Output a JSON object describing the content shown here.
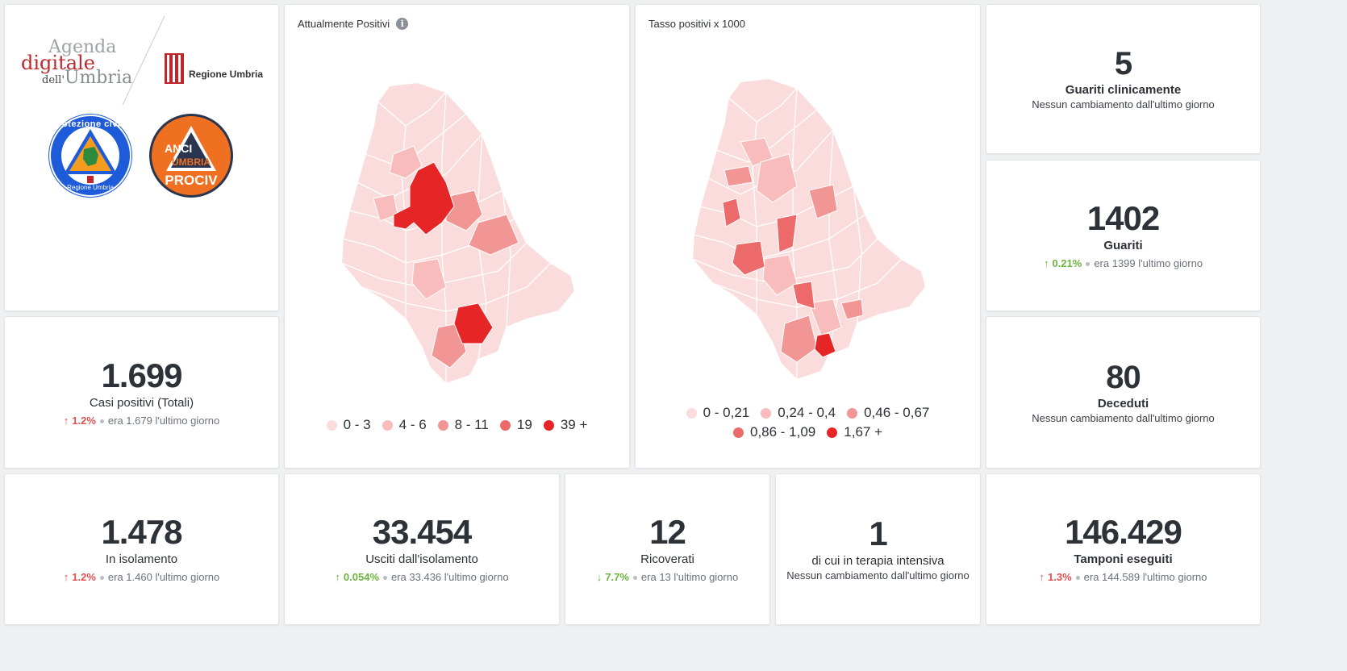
{
  "logos": {
    "agenda_line1": "Agenda",
    "agenda_line2": "digitale",
    "agenda_line3_prefix": "dell'",
    "agenda_line3": "Umbria",
    "regione": "Regione Umbria",
    "protezione_text": "Protezione civile",
    "protezione_sub": "Regione Umbria",
    "anci_line1": "ANCI",
    "anci_line2": "UMBRIA",
    "anci_line3": "PROCIV"
  },
  "map1": {
    "title": "Attualmente Positivi",
    "legend": [
      {
        "label": "0 - 3",
        "color": "#fbdcdc"
      },
      {
        "label": "4 - 6",
        "color": "#f8bcbc"
      },
      {
        "label": "8 - 11",
        "color": "#f29595"
      },
      {
        "label": "19",
        "color": "#ec6a6a"
      },
      {
        "label": "39 +",
        "color": "#e62626"
      }
    ]
  },
  "map2": {
    "title": "Tasso positivi x 1000",
    "legend": [
      {
        "label": "0 - 0,21",
        "color": "#fbdcdc"
      },
      {
        "label": "0,24 - 0,4",
        "color": "#f8bcbc"
      },
      {
        "label": "0,46 - 0,67",
        "color": "#f29595"
      },
      {
        "label": "0,86 - 1,09",
        "color": "#ec6a6a"
      },
      {
        "label": "1,67 +",
        "color": "#e62626"
      }
    ]
  },
  "colors": {
    "red": "#e05252",
    "green": "#6bb33f"
  },
  "stats": {
    "guariti_clinicamente": {
      "value": "5",
      "label": "Guariti clinicamente",
      "note": "Nessun cambiamento dall'ultimo giorno"
    },
    "guariti": {
      "value": "1402",
      "label": "Guariti",
      "pct": "0.21%",
      "prev": "era 1399",
      "suffix": "l'ultimo giorno"
    },
    "casi_positivi": {
      "value": "1.699",
      "label": "Casi positivi (Totali)",
      "pct": "1.2%",
      "prev": "era 1.679",
      "suffix": "l'ultimo giorno"
    },
    "deceduti": {
      "value": "80",
      "label": "Deceduti",
      "note": "Nessun cambiamento dall'ultimo giorno"
    },
    "isolamento": {
      "value": "1.478",
      "label": "In isolamento",
      "pct": "1.2%",
      "prev": "era 1.460",
      "suffix": "l'ultimo giorno"
    },
    "usciti": {
      "value": "33.454",
      "label": "Usciti dall'isolamento",
      "pct": "0.054%",
      "prev": "era 33.436",
      "suffix": "l'ultimo giorno"
    },
    "ricoverati": {
      "value": "12",
      "label": "Ricoverati",
      "pct": "7.7%",
      "prev": "era 13",
      "suffix": "l'ultimo giorno"
    },
    "terapia": {
      "value": "1",
      "label": "di cui in terapia intensiva",
      "note": "Nessun cambiamento dall'ultimo giorno"
    },
    "tamponi": {
      "value": "146.429",
      "label": "Tamponi eseguiti",
      "pct": "1.3%",
      "prev": "era 144.589",
      "suffix": "l'ultimo giorno"
    }
  }
}
